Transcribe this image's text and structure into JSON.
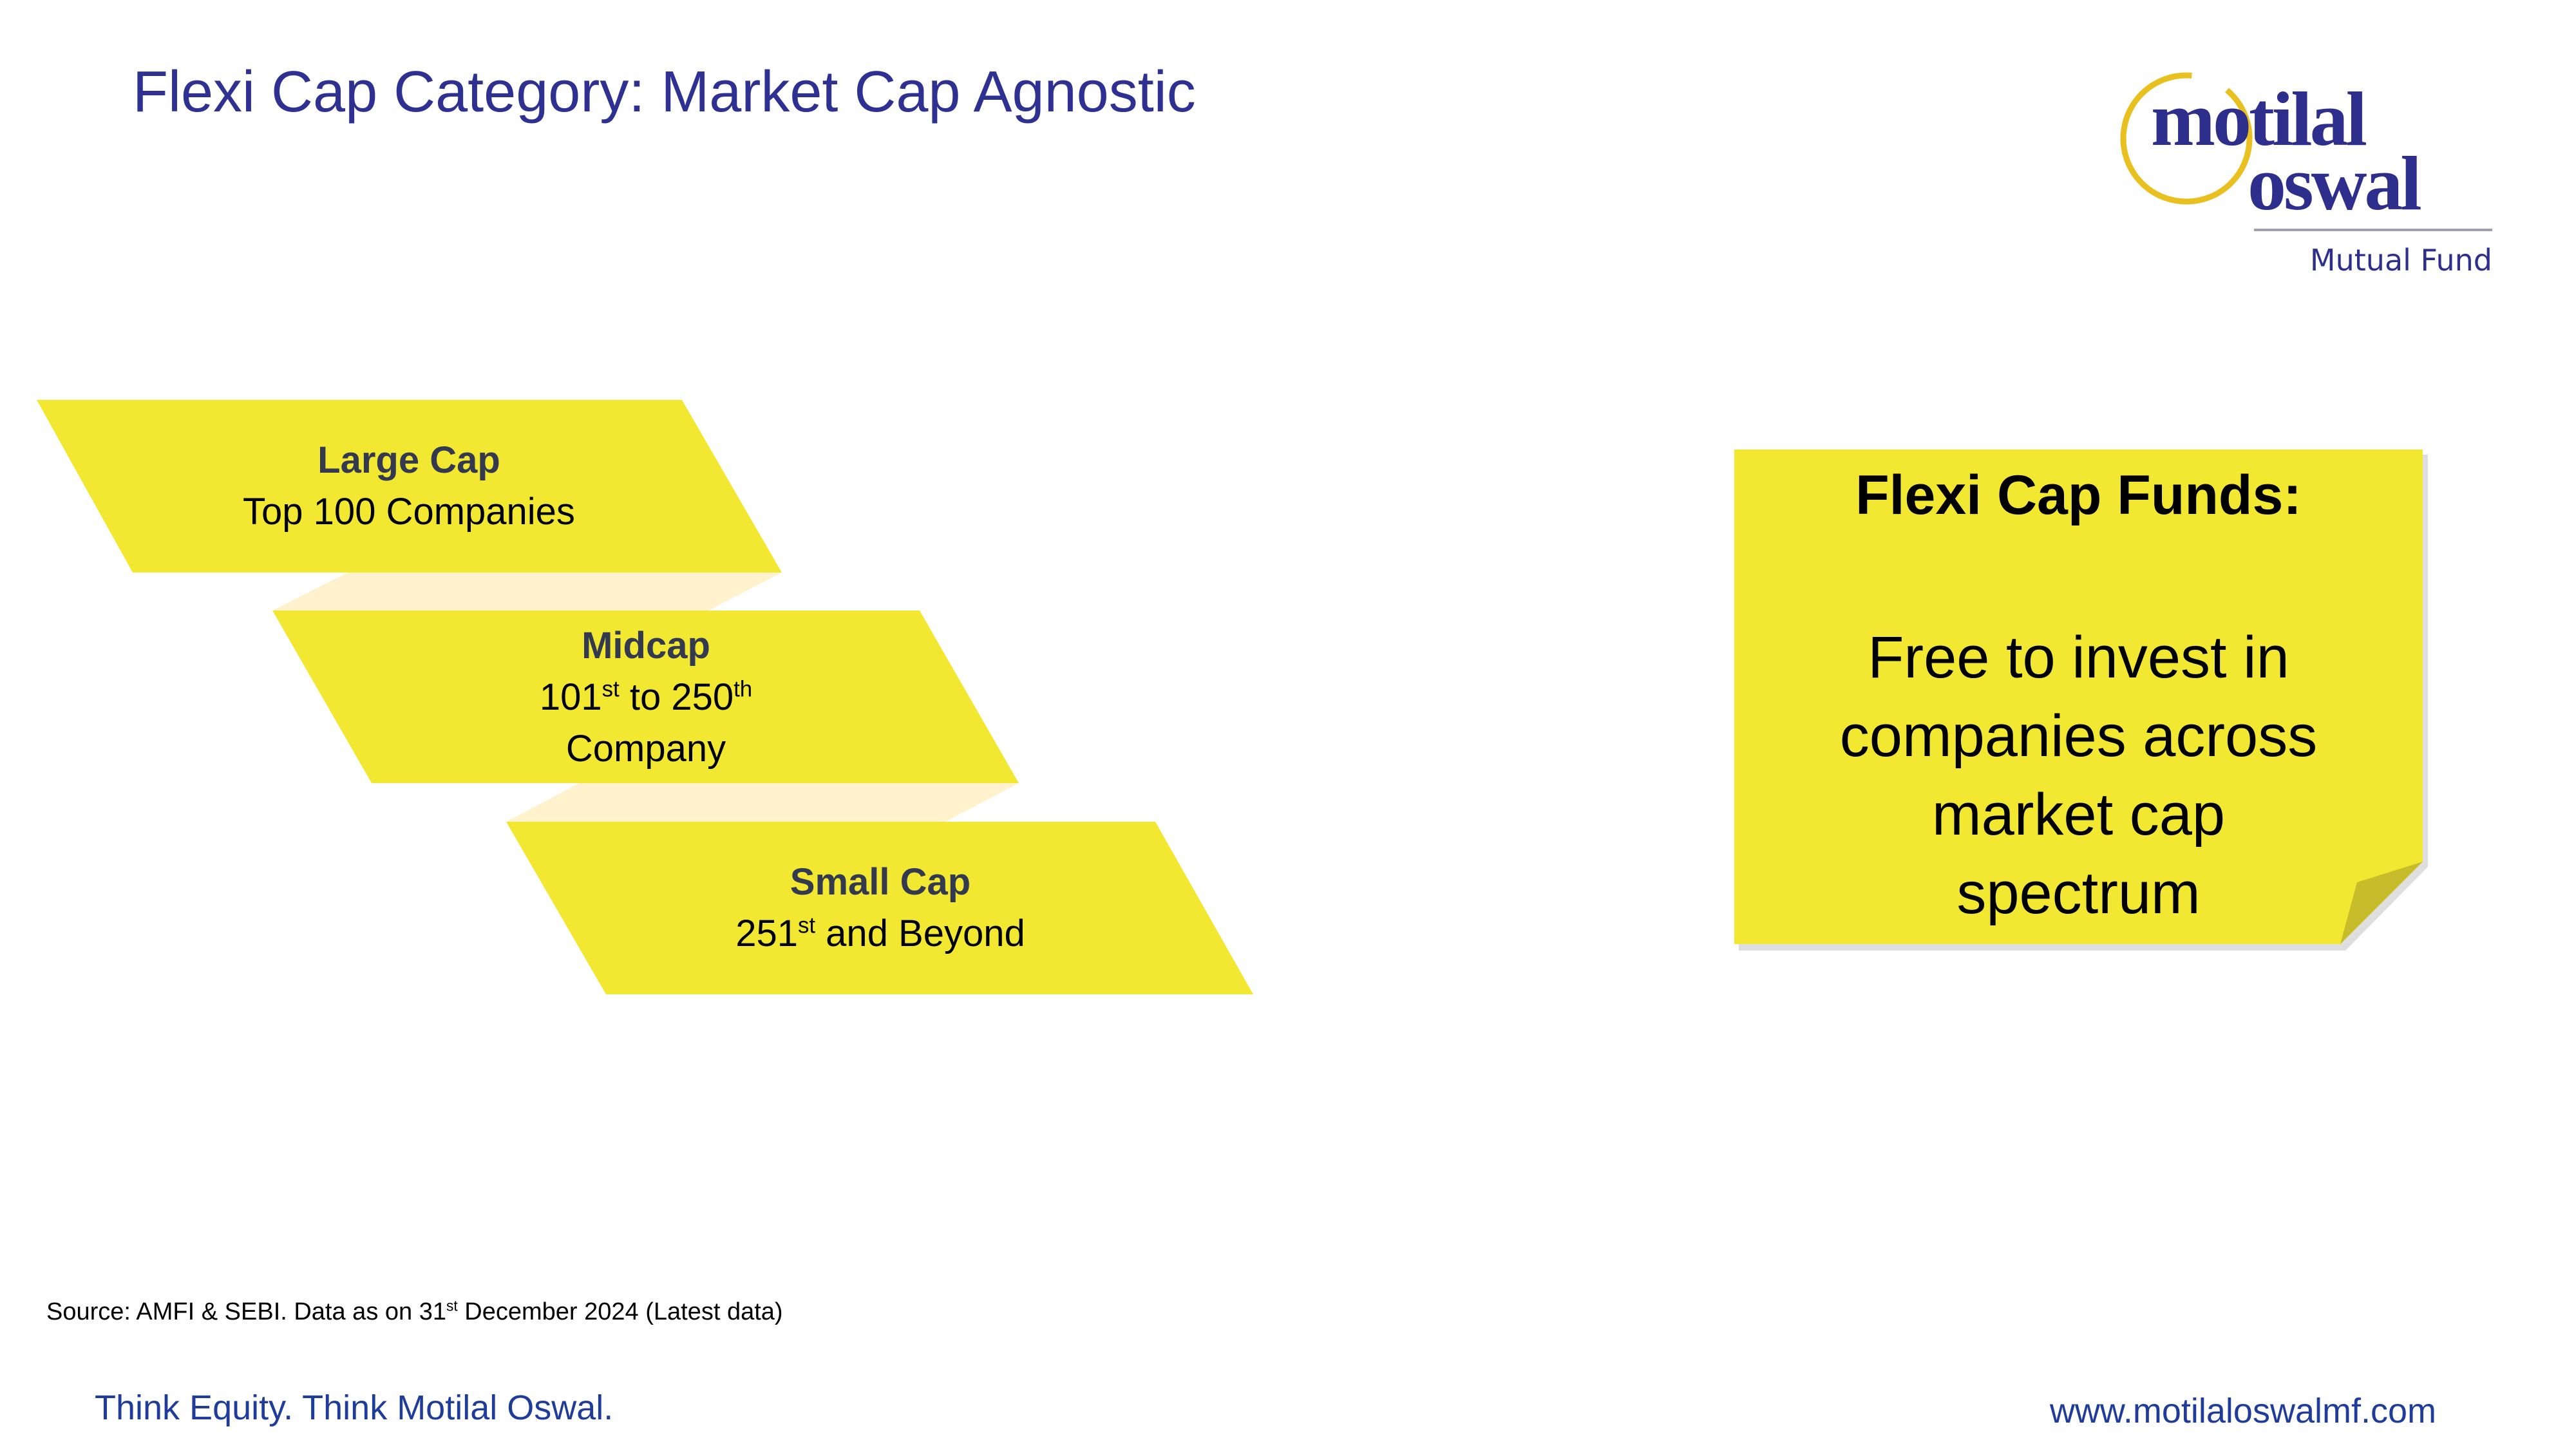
{
  "title": "Flexi Cap Category: Market Cap Agnostic",
  "logo": {
    "text_top": "motilal",
    "text_bottom": "oswal",
    "subtitle": "Mutual Fund"
  },
  "tiers": [
    {
      "heading": "Large Cap",
      "line1": "Top 100 Companies"
    },
    {
      "heading": "Midcap",
      "line1_a": "101",
      "line1_a_sup": "st",
      "line1_b": " to 250",
      "line1_b_sup": "th",
      "line2": "Company"
    },
    {
      "heading": "Small Cap",
      "line1_a": "251",
      "line1_a_sup": "st",
      "line1_b": " and Beyond"
    }
  ],
  "note": {
    "title": "Flexi Cap Funds:",
    "body": "Free to invest in companies across market cap spectrum"
  },
  "source": {
    "a": "Source: AMFI & SEBI. Data as on 31",
    "sup": "st",
    "b": " December 2024 (Latest data)"
  },
  "footer": {
    "tagline": "Think Equity. Think Motilal Oswal.",
    "url": "www.motilaloswalmf.com"
  },
  "colors": {
    "title": "#2e3192",
    "tier_fill": "#f2e831",
    "connector": "#fff2cc",
    "note_fill": "#f2e831",
    "footer_text": "#1f3c9a",
    "logo_ring": "#e8c020"
  }
}
